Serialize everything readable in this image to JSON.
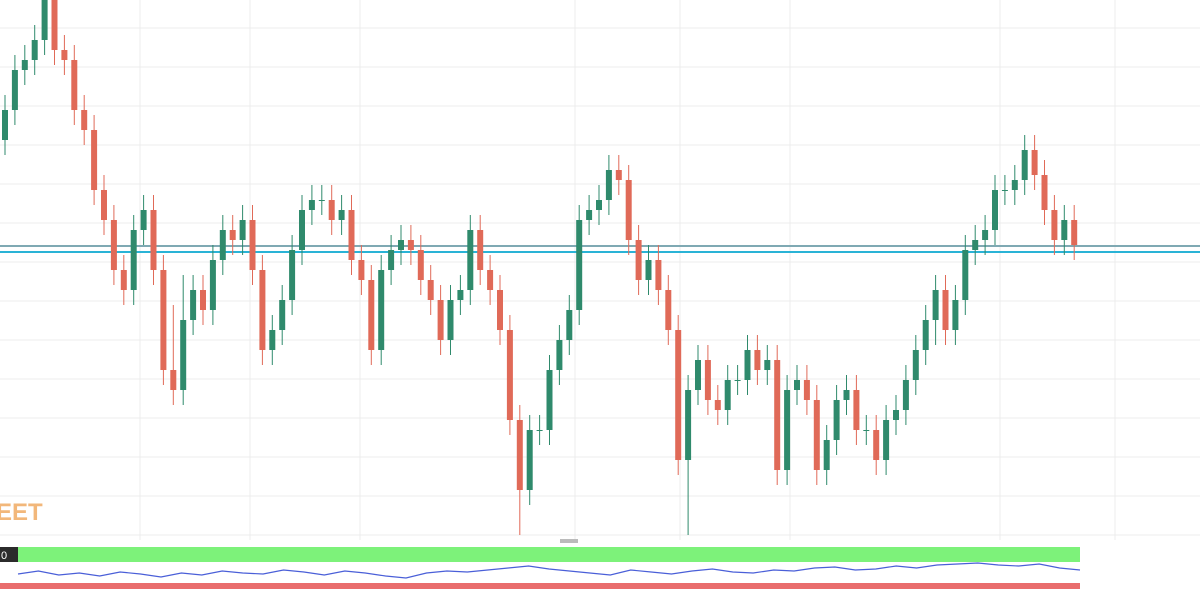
{
  "chart_data": [
    {
      "type": "candlestick",
      "watermark": "EET",
      "ylim": [
        0,
        540
      ],
      "up_color": "#2f8a6c",
      "down_color": "#e06a58",
      "levels": [
        {
          "value": 294,
          "color": "#7fa9b3"
        },
        {
          "value": 288,
          "color": "#2ab3d6"
        }
      ],
      "open": [
        400,
        430,
        470,
        480,
        500,
        540,
        490,
        480,
        430,
        410,
        350,
        320,
        270,
        250,
        310,
        330,
        270,
        170,
        150,
        220,
        250,
        230,
        280,
        310,
        300,
        320,
        270,
        190,
        210,
        240,
        290,
        330,
        340,
        340,
        320,
        330,
        280,
        260,
        190,
        270,
        290,
        300,
        290,
        260,
        240,
        200,
        240,
        250,
        310,
        270,
        250,
        210,
        120,
        50,
        110,
        110,
        170,
        200,
        230,
        320,
        330,
        340,
        370,
        360,
        300,
        260,
        280,
        250,
        210,
        80,
        150,
        180,
        140,
        130,
        160,
        160,
        190,
        170,
        180,
        70,
        150,
        160,
        140,
        70,
        100,
        140,
        150,
        110,
        110,
        80,
        120,
        130,
        160,
        190,
        220,
        250,
        210,
        240,
        290,
        300,
        310,
        350,
        350,
        360,
        390,
        365,
        330,
        300,
        320
      ],
      "high": [
        445,
        485,
        495,
        515,
        540,
        540,
        505,
        495,
        445,
        425,
        365,
        335,
        285,
        325,
        345,
        345,
        285,
        235,
        265,
        265,
        265,
        295,
        325,
        325,
        335,
        335,
        285,
        225,
        255,
        305,
        345,
        355,
        355,
        355,
        345,
        345,
        295,
        275,
        285,
        305,
        315,
        315,
        305,
        275,
        255,
        255,
        265,
        325,
        325,
        285,
        265,
        225,
        135,
        125,
        125,
        185,
        215,
        245,
        335,
        345,
        355,
        385,
        385,
        375,
        315,
        295,
        295,
        265,
        225,
        165,
        195,
        195,
        155,
        175,
        175,
        205,
        205,
        195,
        195,
        165,
        175,
        175,
        155,
        115,
        155,
        165,
        165,
        125,
        125,
        135,
        145,
        175,
        205,
        235,
        265,
        265,
        255,
        305,
        315,
        325,
        365,
        365,
        375,
        405,
        405,
        380,
        345,
        335,
        335
      ],
      "low": [
        385,
        415,
        455,
        465,
        485,
        475,
        465,
        415,
        395,
        335,
        305,
        255,
        235,
        235,
        295,
        255,
        155,
        135,
        135,
        205,
        215,
        215,
        265,
        285,
        285,
        255,
        175,
        175,
        195,
        225,
        275,
        315,
        325,
        305,
        305,
        265,
        245,
        175,
        175,
        255,
        275,
        275,
        245,
        225,
        185,
        185,
        225,
        235,
        255,
        235,
        195,
        105,
        5,
        35,
        95,
        95,
        155,
        185,
        215,
        305,
        315,
        325,
        345,
        285,
        245,
        245,
        235,
        195,
        65,
        5,
        135,
        125,
        115,
        115,
        145,
        145,
        155,
        155,
        55,
        55,
        135,
        125,
        55,
        55,
        85,
        125,
        95,
        95,
        65,
        65,
        105,
        115,
        145,
        175,
        195,
        195,
        195,
        225,
        275,
        285,
        295,
        335,
        335,
        345,
        350,
        315,
        285,
        285,
        280
      ],
      "close": [
        430,
        470,
        480,
        500,
        540,
        490,
        480,
        430,
        410,
        350,
        320,
        270,
        250,
        310,
        330,
        270,
        170,
        150,
        220,
        250,
        230,
        280,
        310,
        300,
        320,
        270,
        190,
        210,
        240,
        290,
        330,
        340,
        340,
        320,
        330,
        280,
        260,
        190,
        270,
        290,
        300,
        290,
        260,
        240,
        200,
        240,
        250,
        310,
        270,
        250,
        210,
        120,
        50,
        110,
        110,
        170,
        200,
        230,
        320,
        330,
        340,
        370,
        360,
        300,
        260,
        280,
        250,
        210,
        80,
        150,
        180,
        140,
        130,
        160,
        160,
        190,
        170,
        180,
        70,
        150,
        160,
        140,
        70,
        100,
        140,
        150,
        110,
        110,
        80,
        120,
        130,
        160,
        190,
        220,
        250,
        210,
        240,
        290,
        300,
        310,
        350,
        350,
        360,
        390,
        365,
        330,
        300,
        320,
        295
      ]
    },
    {
      "type": "line",
      "label": "0",
      "ylim": [
        0,
        100
      ],
      "color": "#4a5fd8",
      "values": [
        40,
        55,
        35,
        45,
        30,
        50,
        40,
        25,
        45,
        35,
        55,
        45,
        40,
        60,
        50,
        35,
        55,
        45,
        30,
        20,
        45,
        55,
        50,
        60,
        70,
        80,
        65,
        55,
        45,
        35,
        60,
        50,
        40,
        55,
        65,
        50,
        45,
        60,
        55,
        70,
        75,
        60,
        65,
        80,
        70,
        85,
        90,
        95,
        85,
        80,
        90,
        70,
        60
      ]
    }
  ]
}
